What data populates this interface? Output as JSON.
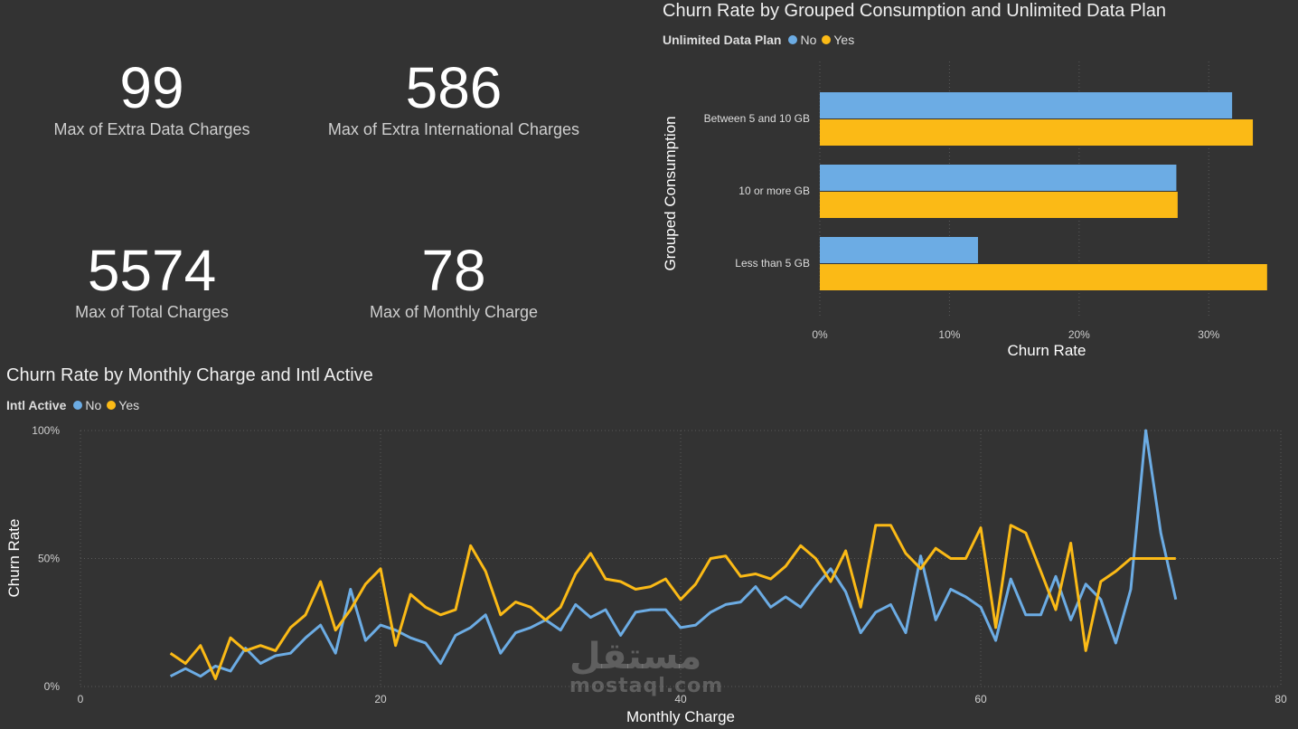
{
  "kpis": [
    {
      "value": "99",
      "label": "Max of Extra Data Charges"
    },
    {
      "value": "586",
      "label": "Max of Extra International Charges"
    },
    {
      "value": "5574",
      "label": "Max of Total Charges"
    },
    {
      "value": "78",
      "label": "Max of Monthly Charge"
    }
  ],
  "colors": {
    "no": "#6cace4",
    "yes": "#fbba16",
    "grid": "#5a5a5a"
  },
  "watermark": {
    "arabic": "مستقل",
    "latin": "mostaql.com"
  },
  "chart_data": [
    {
      "type": "bar",
      "orientation": "horizontal",
      "title": "Churn Rate by Grouped Consumption and Unlimited Data Plan",
      "legend_title": "Unlimited Data Plan",
      "categories": [
        "Between 5 and 10 GB",
        "10 or more GB",
        "Less than 5 GB"
      ],
      "series": [
        {
          "name": "No",
          "values": [
            0.318,
            0.275,
            0.122
          ]
        },
        {
          "name": "Yes",
          "values": [
            0.334,
            0.276,
            0.345
          ]
        }
      ],
      "xlabel": "Churn Rate",
      "ylabel": "Grouped Consumption",
      "xlim": [
        0,
        0.35
      ],
      "xticks": [
        "0%",
        "10%",
        "20%",
        "30%"
      ],
      "grid": true,
      "legend_position": "top-left"
    },
    {
      "type": "line",
      "title": "Churn Rate by Monthly Charge and Intl Active",
      "legend_title": "Intl Active",
      "xlabel": "Monthly Charge",
      "ylabel": "Churn Rate",
      "xlim": [
        0,
        80
      ],
      "ylim": [
        0,
        1
      ],
      "xticks": [
        "0",
        "20",
        "40",
        "60",
        "80"
      ],
      "yticks": [
        "0%",
        "50%",
        "100%"
      ],
      "grid": true,
      "legend_position": "top-left",
      "series": [
        {
          "name": "No",
          "x": [
            6,
            7,
            8,
            9,
            10,
            11,
            12,
            13,
            14,
            15,
            16,
            17,
            18,
            19,
            20,
            21,
            22,
            23,
            24,
            25,
            26,
            27,
            28,
            29,
            30,
            31,
            32,
            33,
            34,
            35,
            36,
            37,
            38,
            39,
            40,
            41,
            42,
            43,
            44,
            45,
            46,
            47,
            48,
            49,
            50,
            51,
            52,
            53,
            54,
            55,
            56,
            57,
            58,
            59,
            60,
            61,
            62,
            63,
            64,
            65,
            66,
            67,
            68,
            69,
            70,
            71,
            72,
            73
          ],
          "y": [
            0.04,
            0.07,
            0.04,
            0.08,
            0.06,
            0.15,
            0.09,
            0.12,
            0.13,
            0.19,
            0.24,
            0.13,
            0.38,
            0.18,
            0.24,
            0.22,
            0.19,
            0.17,
            0.09,
            0.2,
            0.23,
            0.28,
            0.13,
            0.21,
            0.23,
            0.26,
            0.22,
            0.32,
            0.27,
            0.3,
            0.2,
            0.29,
            0.3,
            0.3,
            0.23,
            0.24,
            0.29,
            0.32,
            0.33,
            0.39,
            0.31,
            0.35,
            0.31,
            0.39,
            0.46,
            0.37,
            0.21,
            0.29,
            0.32,
            0.21,
            0.51,
            0.26,
            0.38,
            0.35,
            0.31,
            0.18,
            0.42,
            0.28,
            0.28,
            0.43,
            0.26,
            0.4,
            0.34,
            0.17,
            0.38,
            1.0,
            0.6,
            0.34
          ]
        },
        {
          "name": "Yes",
          "x": [
            6,
            7,
            8,
            9,
            10,
            11,
            12,
            13,
            14,
            15,
            16,
            17,
            18,
            19,
            20,
            21,
            22,
            23,
            24,
            25,
            26,
            27,
            28,
            29,
            30,
            31,
            32,
            33,
            34,
            35,
            36,
            37,
            38,
            39,
            40,
            41,
            42,
            43,
            44,
            45,
            46,
            47,
            48,
            49,
            50,
            51,
            52,
            53,
            54,
            55,
            56,
            57,
            58,
            59,
            60,
            61,
            62,
            63,
            64,
            65,
            66,
            67,
            68,
            69,
            70,
            71,
            72,
            73
          ],
          "y": [
            0.13,
            0.09,
            0.16,
            0.03,
            0.19,
            0.14,
            0.16,
            0.14,
            0.23,
            0.28,
            0.41,
            0.22,
            0.3,
            0.4,
            0.46,
            0.16,
            0.36,
            0.31,
            0.28,
            0.3,
            0.55,
            0.45,
            0.28,
            0.33,
            0.31,
            0.26,
            0.31,
            0.44,
            0.52,
            0.42,
            0.41,
            0.38,
            0.39,
            0.42,
            0.34,
            0.4,
            0.5,
            0.51,
            0.43,
            0.44,
            0.42,
            0.47,
            0.55,
            0.5,
            0.41,
            0.53,
            0.31,
            0.63,
            0.63,
            0.52,
            0.46,
            0.54,
            0.5,
            0.5,
            0.62,
            0.23,
            0.63,
            0.6,
            0.45,
            0.3,
            0.56,
            0.14,
            0.41,
            0.45,
            0.5,
            0.5,
            0.5,
            0.5
          ]
        }
      ]
    }
  ]
}
